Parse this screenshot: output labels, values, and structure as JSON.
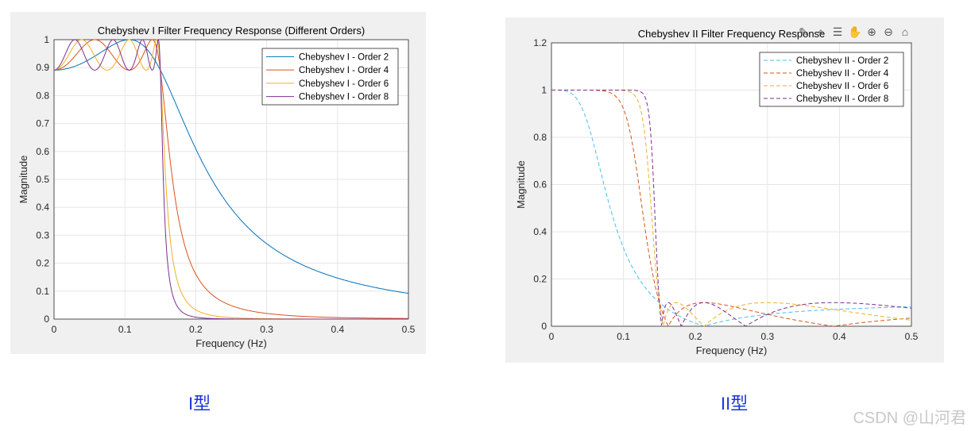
{
  "charts": [
    {
      "type": "line",
      "title": "Chebyshev I Filter Frequency Response (Different Orders)",
      "xlabel": "Frequency (Hz)",
      "ylabel": "Magnitude",
      "xlim": [
        0,
        0.5
      ],
      "ylim": [
        0,
        1
      ],
      "xticks": [
        0,
        0.1,
        0.2,
        0.3,
        0.4,
        0.5
      ],
      "yticks": [
        0,
        0.1,
        0.2,
        0.3,
        0.4,
        0.5,
        0.6,
        0.7,
        0.8,
        0.9,
        1
      ],
      "grid": true,
      "legend_position": "top-right",
      "line_style": "solid",
      "filter": "chebyshev1",
      "cutoff": 0.15,
      "ripple_min": 0.891,
      "series": [
        {
          "name": "Chebyshev I - Order 2",
          "order": 2,
          "color": "#0072BD"
        },
        {
          "name": "Chebyshev I - Order 4",
          "order": 4,
          "color": "#D95319"
        },
        {
          "name": "Chebyshev I - Order 6",
          "order": 6,
          "color": "#EDB120"
        },
        {
          "name": "Chebyshev I - Order 8",
          "order": 8,
          "color": "#7E2F8E"
        }
      ]
    },
    {
      "type": "line",
      "title": "Chebyshev II Filter Frequency Response",
      "xlabel": "Frequency (Hz)",
      "ylabel": "Magnitude",
      "xlim": [
        0,
        0.5
      ],
      "ylim": [
        0,
        1.2
      ],
      "xticks": [
        0,
        0.1,
        0.2,
        0.3,
        0.4,
        0.5
      ],
      "yticks": [
        0,
        0.2,
        0.4,
        0.6,
        0.8,
        1,
        1.2
      ],
      "grid": true,
      "legend_position": "top-right",
      "line_style": "dashed",
      "filter": "chebyshev2",
      "cutoff": 0.15,
      "stopband_level": 0.1,
      "series": [
        {
          "name": "Chebyshev II - Order 2",
          "order": 2,
          "color": "#4DBEEE"
        },
        {
          "name": "Chebyshev II - Order 4",
          "order": 4,
          "color": "#D95319"
        },
        {
          "name": "Chebyshev II - Order 6",
          "order": 6,
          "color": "#EDB120"
        },
        {
          "name": "Chebyshev II - Order 8",
          "order": 8,
          "color": "#7E2F8E"
        }
      ]
    }
  ],
  "captions": {
    "left": "I型",
    "right": "II型"
  },
  "watermark": "CSDN @山河君",
  "toolbar_icons": [
    "brush-icon",
    "data-tip-icon",
    "legend-icon",
    "pan-hand-icon",
    "zoom-in-icon",
    "zoom-out-icon",
    "home-icon"
  ]
}
